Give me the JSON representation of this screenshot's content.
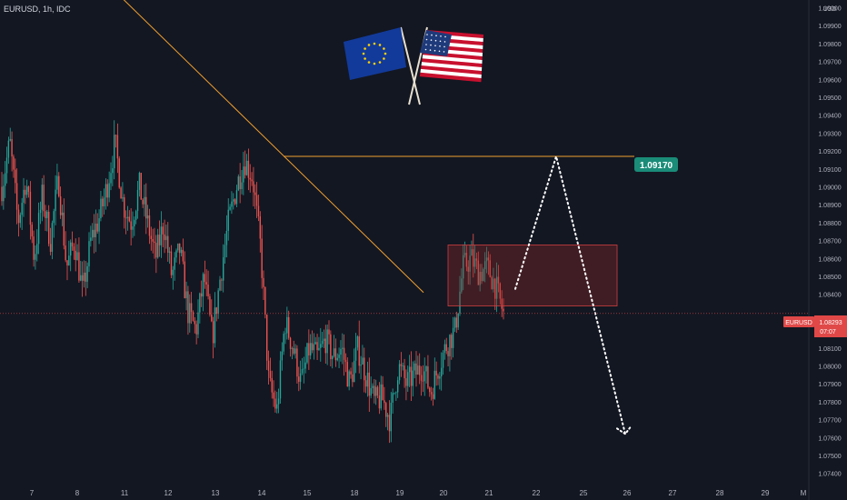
{
  "header": {
    "symbol_line": "EURUSD, 1h, IDC"
  },
  "colors": {
    "background": "#131722",
    "up": "#26a69a",
    "down": "#ef5350",
    "trendline": "#f0a030",
    "zone_fill": "rgba(150,40,40,0.35)",
    "zone_stroke": "#d04040",
    "price_tag": "#e04848",
    "target_tag": "#1a8c78",
    "axis_text": "#b2b5be",
    "arrow": "#ffffff"
  },
  "flags": [
    {
      "icon": "eu-flag-icon"
    },
    {
      "icon": "us-flag-icon"
    }
  ],
  "chart_data": {
    "type": "candlestick",
    "title": "EURUSD, 1h, IDC",
    "y_axis": {
      "unit_label": "USD",
      "range": [
        1.074,
        1.1005
      ],
      "ticks": [
        "1.10000",
        "1.09900",
        "1.09800",
        "1.09700",
        "1.09600",
        "1.09500",
        "1.09400",
        "1.09300",
        "1.09200",
        "1.09100",
        "1.09000",
        "1.08900",
        "1.08800",
        "1.08700",
        "1.08600",
        "1.08500",
        "1.08400",
        "1.08200",
        "1.08100",
        "1.08000",
        "1.07900",
        "1.07800",
        "1.07700",
        "1.07600",
        "1.07500",
        "1.07400"
      ]
    },
    "x_axis": {
      "ticks": [
        "7",
        "8",
        "11",
        "12",
        "13",
        "14",
        "15",
        "18",
        "19",
        "20",
        "21",
        "22",
        "25",
        "26",
        "27",
        "28",
        "29",
        "M"
      ]
    },
    "price_line": {
      "label": "EURUSD",
      "value": "1.08293",
      "countdown": "07:07"
    },
    "target_level": {
      "label": "1.09170",
      "value": 1.0917
    },
    "zone": {
      "price_top": 1.08675,
      "price_bottom": 1.08335
    },
    "trendline": {
      "start_price": 1.101,
      "end_price": 1.0841
    },
    "projection": {
      "points": [
        1.0843,
        1.0917,
        1.0762
      ]
    },
    "price_path": [
      1.09,
      1.0925,
      1.088,
      1.0905,
      1.086,
      1.0895,
      1.087,
      1.0905,
      1.0855,
      1.087,
      1.084,
      1.087,
      1.0882,
      1.09,
      1.0925,
      1.089,
      1.088,
      1.09,
      1.088,
      1.086,
      1.088,
      1.085,
      1.0865,
      1.083,
      1.082,
      1.085,
      1.0815,
      1.085,
      1.088,
      1.09,
      1.0915,
      1.0905,
      1.0865,
      1.079,
      1.0775,
      1.0825,
      1.081,
      1.079,
      1.081,
      1.0805,
      1.0815,
      1.0805,
      1.081,
      1.079,
      1.081,
      1.0795,
      1.078,
      1.0782,
      1.077,
      1.08,
      1.079,
      1.0795,
      1.08,
      1.0785,
      1.08,
      1.0812,
      1.082,
      1.0855,
      1.086,
      1.0852,
      1.0855,
      1.0845,
      1.0829
    ]
  }
}
